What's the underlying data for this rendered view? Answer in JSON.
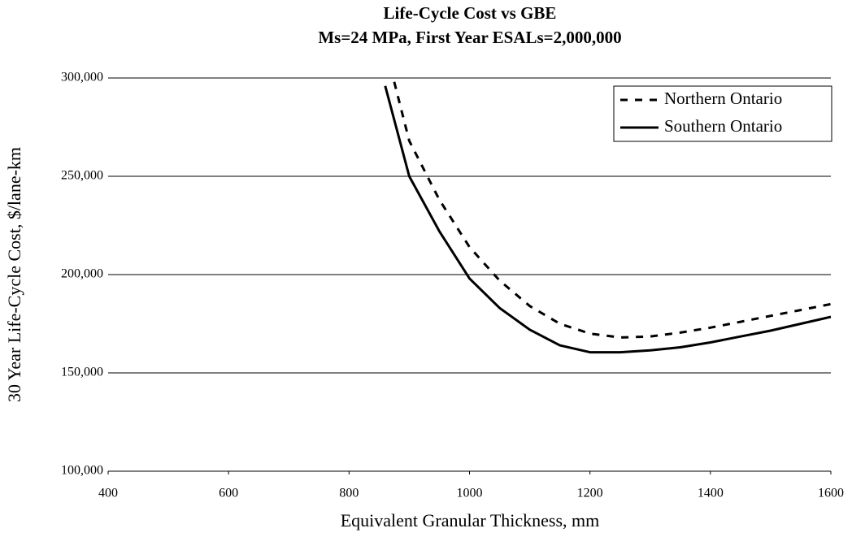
{
  "chart_data": {
    "type": "line",
    "title": "Life-Cycle Cost vs GBE",
    "subtitle": "Ms=24 MPa, First Year ESALs=2,000,000",
    "xlabel": "Equivalent Granular Thickness, mm",
    "ylabel": "30 Year Life-Cycle Cost, $/lane-km",
    "xlim": [
      400,
      1600
    ],
    "xticks": [
      400,
      600,
      800,
      1000,
      1200,
      1400,
      1600
    ],
    "ylim": [
      100000,
      300000
    ],
    "yticks": [
      {
        "value": 100000,
        "label": "100,000"
      },
      {
        "value": 150000,
        "label": "150,000"
      },
      {
        "value": 200000,
        "label": "200,000"
      },
      {
        "value": 250000,
        "label": "250,000"
      },
      {
        "value": 300000,
        "label": "300,000"
      }
    ],
    "grid": true,
    "legend": "upper right",
    "series": [
      {
        "name": "Northern Ontario",
        "color": "#000000",
        "dash": "dashed",
        "x": [
          875,
          900,
          950,
          1000,
          1050,
          1100,
          1150,
          1200,
          1250,
          1300,
          1350,
          1400,
          1450,
          1500,
          1550,
          1600
        ],
        "values": [
          298000,
          268000,
          238000,
          214000,
          197000,
          184000,
          175000,
          170000,
          168000,
          168500,
          170500,
          173000,
          176000,
          179000,
          182000,
          185000
        ]
      },
      {
        "name": "Southern Ontario",
        "color": "#000000",
        "dash": "solid",
        "x": [
          860,
          900,
          950,
          1000,
          1050,
          1100,
          1150,
          1200,
          1250,
          1300,
          1350,
          1400,
          1450,
          1500,
          1550,
          1600
        ],
        "values": [
          296000,
          250000,
          222000,
          198000,
          183000,
          172000,
          164000,
          160500,
          160500,
          161500,
          163000,
          165500,
          168500,
          171500,
          175000,
          178500
        ]
      }
    ]
  }
}
